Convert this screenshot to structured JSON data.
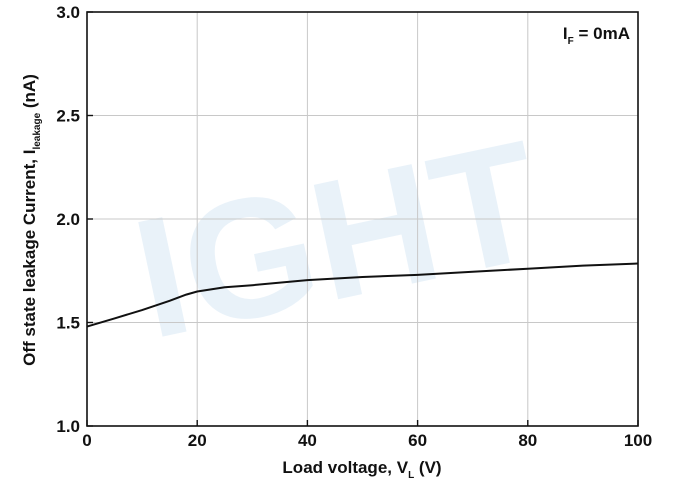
{
  "chart_data": {
    "type": "line",
    "xlabel": {
      "main": "Load voltage, V",
      "sub": "L",
      "unit": "(V)"
    },
    "ylabel": {
      "main": "Off state leakage Current, I",
      "sub": "leakage",
      "unit": "(nA)"
    },
    "annotation": {
      "main": "I",
      "sub": "F",
      "rest": " = 0mA"
    },
    "xlim": [
      0,
      100
    ],
    "ylim": [
      1.0,
      3.0
    ],
    "xticks": [
      0,
      20,
      40,
      60,
      80,
      100
    ],
    "yticks": [
      1.0,
      1.5,
      2.0,
      2.5,
      3.0
    ],
    "ytick_labels": [
      "1.0",
      "1.5",
      "2.0",
      "2.5",
      "3.0"
    ],
    "grid": true,
    "series": [
      {
        "x": [
          0,
          5,
          10,
          15,
          18,
          20,
          25,
          30,
          40,
          50,
          60,
          70,
          80,
          90,
          100
        ],
        "y": [
          1.48,
          1.52,
          1.56,
          1.605,
          1.635,
          1.65,
          1.67,
          1.68,
          1.705,
          1.72,
          1.73,
          1.745,
          1.76,
          1.775,
          1.785
        ],
        "color": "#111111"
      }
    ]
  },
  "watermark": "IGHT"
}
